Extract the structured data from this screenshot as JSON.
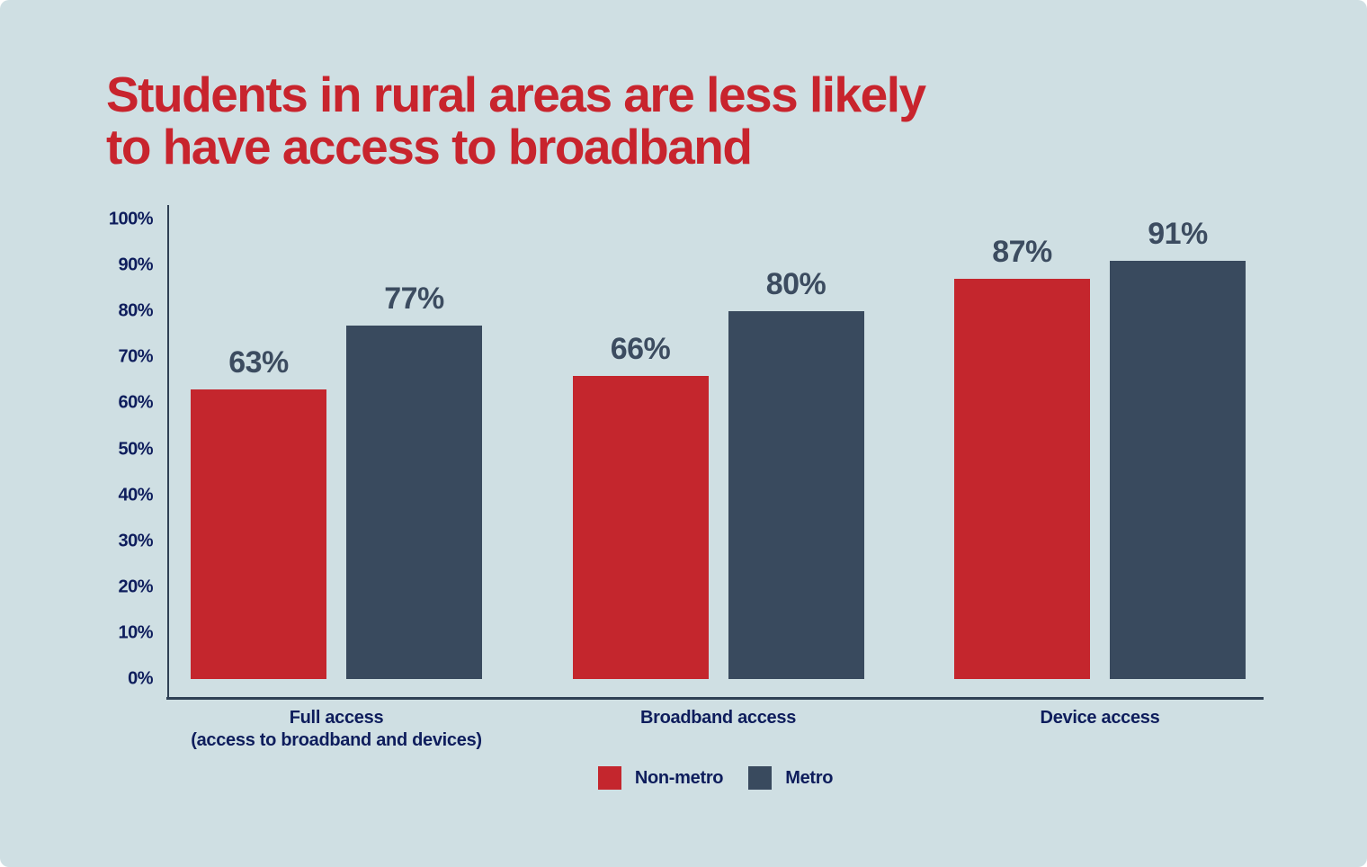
{
  "card": {
    "background_color": "#cfdfe3",
    "title_lines": [
      "Students in rural areas are less likely",
      "to have access to broadband"
    ],
    "title_color": "#c8242d"
  },
  "chart_data": {
    "type": "bar",
    "title": "Students in rural areas are less likely to have access to broadband",
    "categories": [
      [
        "Full access",
        "(access to broadband and devices)"
      ],
      [
        "Broadband access"
      ],
      [
        "Device access"
      ]
    ],
    "series": [
      {
        "name": "Non-metro",
        "color": "#c4262d",
        "values": [
          63,
          66,
          87
        ]
      },
      {
        "name": "Metro",
        "color": "#394a5e",
        "values": [
          77,
          80,
          91
        ]
      }
    ],
    "value_suffix": "%",
    "value_label_color": "#3c4c60",
    "xlabel": "",
    "ylabel": "",
    "ylim": [
      0,
      100
    ],
    "y_ticks": [
      {
        "v": 100,
        "label": "100%"
      },
      {
        "v": 90,
        "label": "90%"
      },
      {
        "v": 80,
        "label": "80%"
      },
      {
        "v": 70,
        "label": "70%"
      },
      {
        "v": 60,
        "label": "60%"
      },
      {
        "v": 50,
        "label": "50%"
      },
      {
        "v": 40,
        "label": "40%"
      },
      {
        "v": 30,
        "label": "30%"
      },
      {
        "v": 20,
        "label": "20%"
      },
      {
        "v": 10,
        "label": "10%"
      },
      {
        "v": 0,
        "label": "0%"
      }
    ],
    "grid": false,
    "legend_position": "bottom",
    "axis_color": "#2f4054",
    "tick_label_color": "#0e1d5c"
  }
}
